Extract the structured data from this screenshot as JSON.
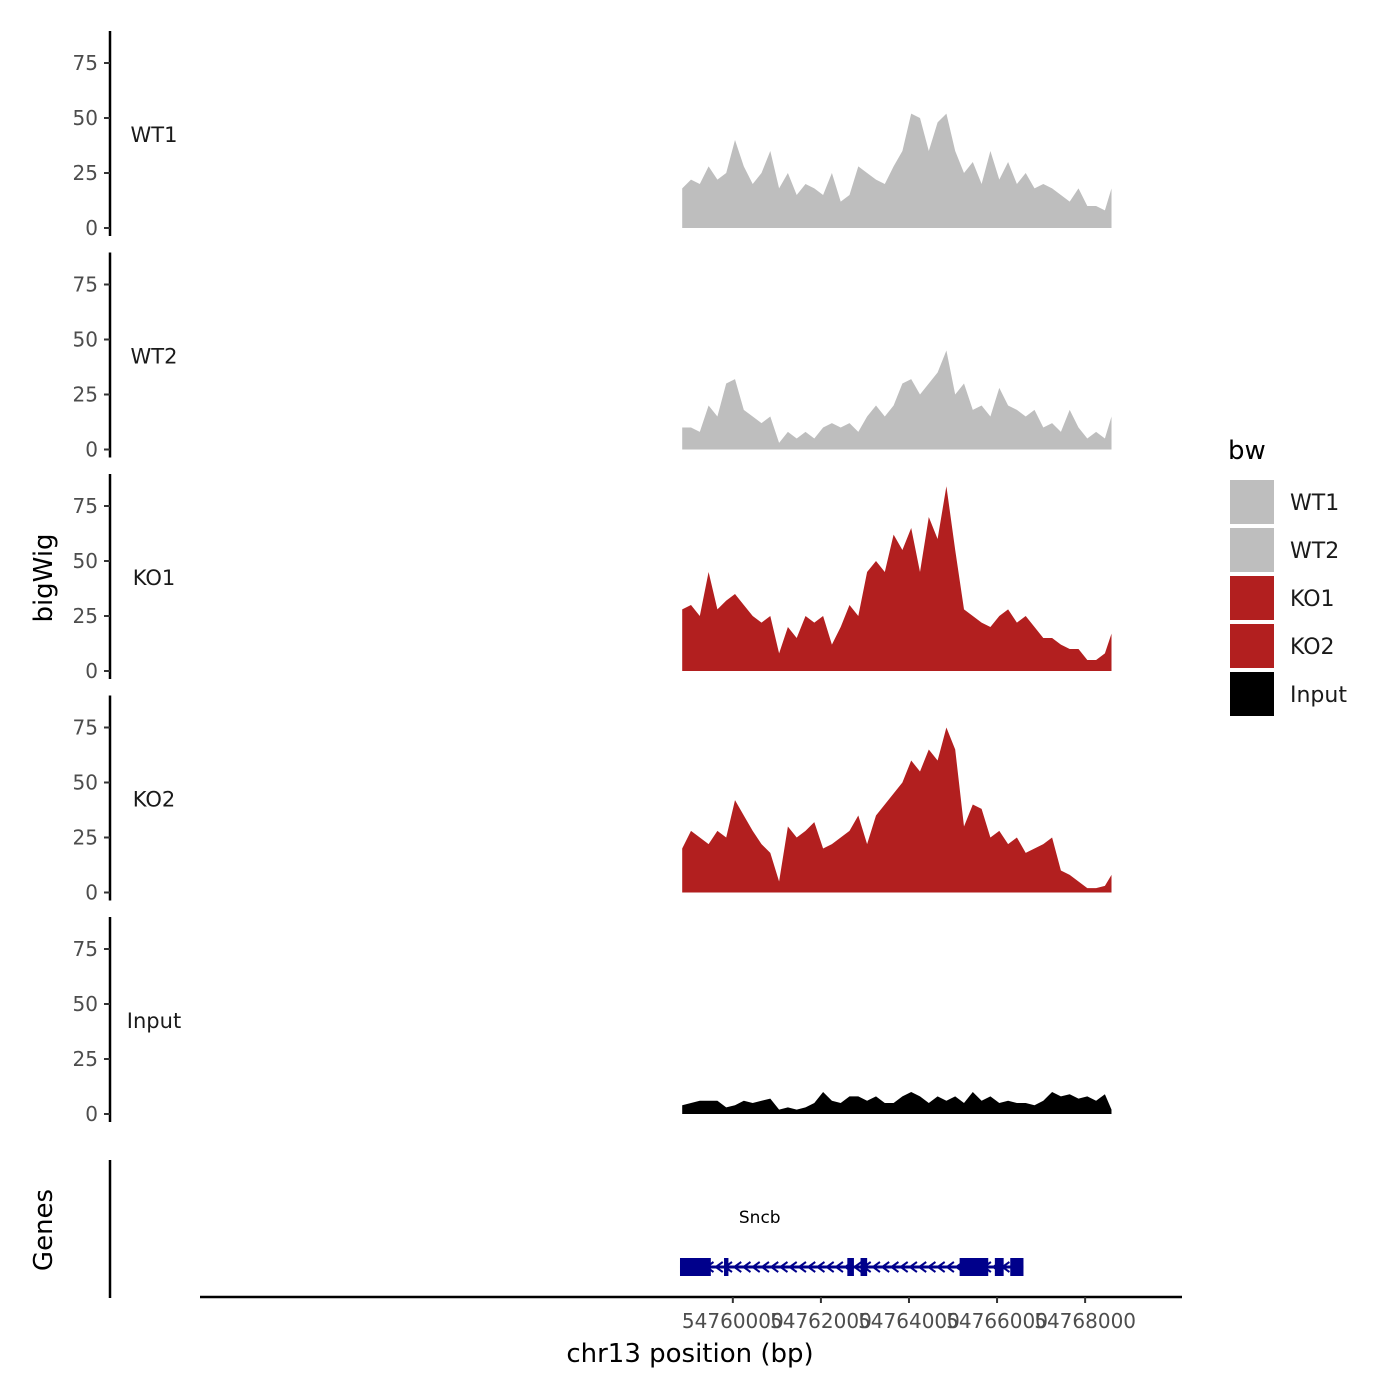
{
  "chart_data": {
    "type": "area",
    "title": "",
    "ylabel": "bigWig",
    "xlabel": "chr13 position (bp)",
    "genes_label": "Genes",
    "xlim": [
      54747900,
      54770200
    ],
    "ylim": [
      0,
      90
    ],
    "y_ticks": [
      0,
      25,
      50,
      75
    ],
    "y_tick_labels": [
      "0",
      "25",
      "50",
      "75"
    ],
    "x_ticks": [
      54760000,
      54762000,
      54764000,
      54766000,
      54768000
    ],
    "x_tick_labels": [
      "54760000",
      "54762000",
      "54764000",
      "54766000",
      "54768000"
    ],
    "legend": {
      "title": "bw",
      "position": "right",
      "entries": [
        {
          "label": "WT1",
          "color": "#bebebe"
        },
        {
          "label": "WT2",
          "color": "#bebebe"
        },
        {
          "label": "KO1",
          "color": "#b21f1f"
        },
        {
          "label": "KO2",
          "color": "#b21f1f"
        },
        {
          "label": "Input",
          "color": "#000000"
        }
      ]
    },
    "x": [
      54758850,
      54759050,
      54759250,
      54759450,
      54759650,
      54759850,
      54760050,
      54760250,
      54760450,
      54760650,
      54760850,
      54761050,
      54761250,
      54761450,
      54761650,
      54761850,
      54762050,
      54762250,
      54762450,
      54762650,
      54762850,
      54763050,
      54763250,
      54763450,
      54763650,
      54763850,
      54764050,
      54764250,
      54764450,
      54764650,
      54764850,
      54765050,
      54765250,
      54765450,
      54765650,
      54765850,
      54766050,
      54766250,
      54766450,
      54766650,
      54766850,
      54767050,
      54767250,
      54767450,
      54767650,
      54767850,
      54768050,
      54768250,
      54768450,
      54768600
    ],
    "series": [
      {
        "name": "WT1",
        "color": "#bebebe",
        "values": [
          18,
          22,
          20,
          28,
          22,
          25,
          40,
          28,
          20,
          25,
          35,
          18,
          25,
          15,
          20,
          18,
          15,
          25,
          12,
          15,
          28,
          25,
          22,
          20,
          28,
          35,
          52,
          50,
          35,
          48,
          52,
          35,
          25,
          30,
          20,
          35,
          22,
          30,
          20,
          25,
          18,
          20,
          18,
          15,
          12,
          18,
          10,
          10,
          8,
          18
        ]
      },
      {
        "name": "WT2",
        "color": "#bebebe",
        "values": [
          10,
          10,
          8,
          20,
          15,
          30,
          32,
          18,
          15,
          12,
          15,
          3,
          8,
          5,
          8,
          5,
          10,
          12,
          10,
          12,
          8,
          15,
          20,
          15,
          20,
          30,
          32,
          25,
          30,
          35,
          45,
          25,
          30,
          18,
          20,
          15,
          28,
          20,
          18,
          15,
          18,
          10,
          12,
          8,
          18,
          10,
          5,
          8,
          5,
          15
        ]
      },
      {
        "name": "KO1",
        "color": "#b21f1f",
        "values": [
          28,
          30,
          25,
          45,
          28,
          32,
          35,
          30,
          25,
          22,
          25,
          8,
          20,
          15,
          25,
          22,
          25,
          12,
          20,
          30,
          25,
          45,
          50,
          45,
          62,
          55,
          65,
          45,
          70,
          60,
          84,
          55,
          28,
          25,
          22,
          20,
          25,
          28,
          22,
          25,
          20,
          15,
          15,
          12,
          10,
          10,
          5,
          5,
          8,
          17
        ]
      },
      {
        "name": "KO2",
        "color": "#b21f1f",
        "values": [
          20,
          28,
          25,
          22,
          28,
          25,
          42,
          35,
          28,
          22,
          18,
          5,
          30,
          25,
          28,
          32,
          20,
          22,
          25,
          28,
          35,
          22,
          35,
          40,
          45,
          50,
          60,
          55,
          65,
          60,
          75,
          65,
          30,
          40,
          38,
          25,
          28,
          22,
          25,
          18,
          20,
          22,
          25,
          10,
          8,
          5,
          2,
          2,
          3,
          8
        ]
      },
      {
        "name": "Input",
        "color": "#000000",
        "values": [
          4,
          5,
          6,
          6,
          6,
          3,
          4,
          6,
          5,
          6,
          7,
          2,
          3,
          2,
          3,
          5,
          10,
          6,
          5,
          8,
          8,
          6,
          8,
          5,
          5,
          8,
          10,
          8,
          5,
          8,
          6,
          8,
          5,
          10,
          6,
          8,
          5,
          6,
          5,
          5,
          4,
          6,
          10,
          8,
          9,
          7,
          8,
          6,
          9,
          2
        ]
      }
    ],
    "gene": {
      "name": "Sncb",
      "start": 54758800,
      "end": 54766600,
      "strand": "-",
      "exons": [
        [
          54758800,
          54759500
        ],
        [
          54759800,
          54759900
        ],
        [
          54762600,
          54762750
        ],
        [
          54762900,
          54763050
        ],
        [
          54765150,
          54765800
        ],
        [
          54765950,
          54766150
        ],
        [
          54766300,
          54766600
        ]
      ]
    }
  }
}
